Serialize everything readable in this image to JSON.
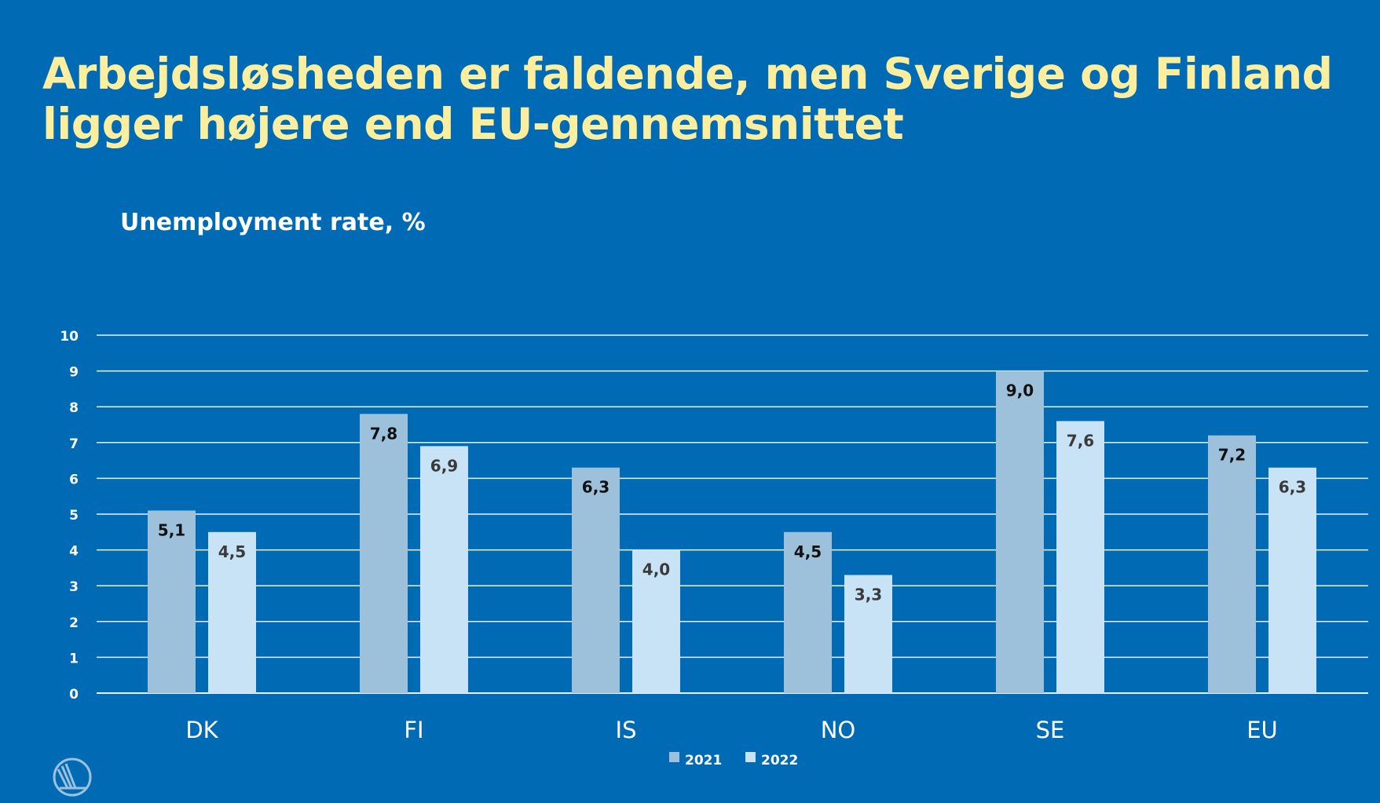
{
  "title": "Arbejdsløsheden er faldende, men Sverige og Finland ligger højere end EU-gennemsnittet",
  "chart_data": {
    "type": "bar",
    "title": "Unemployment rate, %",
    "xlabel": "",
    "ylabel": "",
    "ylim": [
      0,
      10
    ],
    "yticks": [
      "0",
      "1",
      "2",
      "3",
      "4",
      "5",
      "6",
      "7",
      "8",
      "9",
      "10"
    ],
    "grid": true,
    "legend_placement": "bottom",
    "categories": [
      "DK",
      "FI",
      "IS",
      "NO",
      "SE",
      "EU"
    ],
    "series": [
      {
        "name": "2021",
        "color": "#9dc1da",
        "values": [
          5.1,
          7.8,
          6.3,
          4.5,
          9.0,
          7.2
        ],
        "labels": [
          "5,1",
          "7,8",
          "6,3",
          "4,5",
          "9,0",
          "7,2"
        ]
      },
      {
        "name": "2022",
        "color": "#c7e3f5",
        "values": [
          4.5,
          6.9,
          4.0,
          3.3,
          7.6,
          6.3
        ],
        "labels": [
          "4,5",
          "6,9",
          "4,0",
          "3,3",
          "7,6",
          "6,3"
        ]
      }
    ]
  },
  "colors": {
    "background": "#006bb4",
    "title": "#fbee9f"
  },
  "logo": {
    "icon": "nordic-swan-logo-icon"
  }
}
